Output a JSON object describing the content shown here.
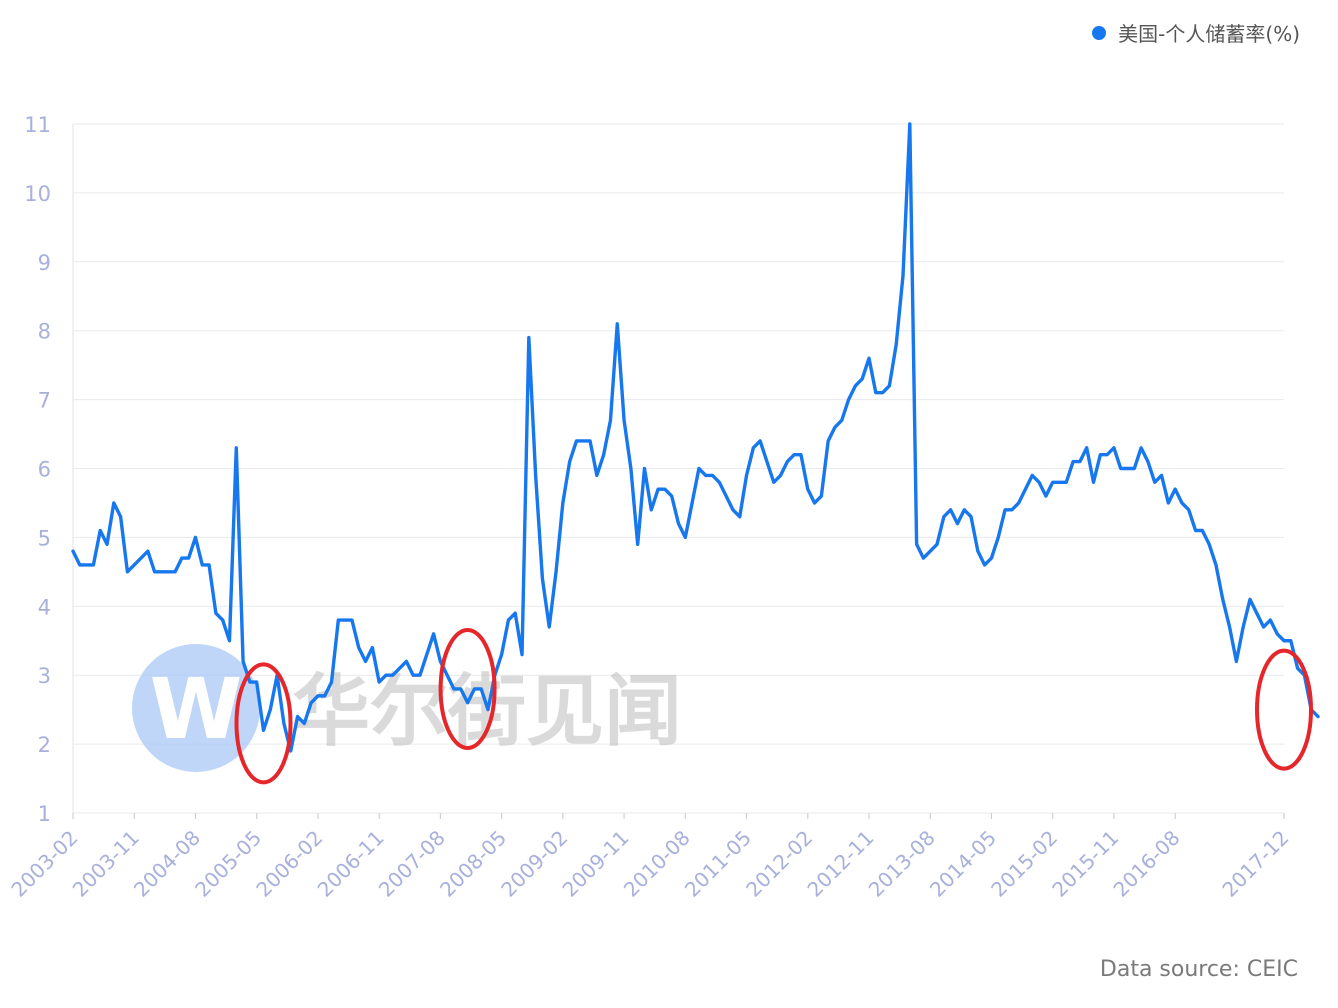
{
  "chart_data": {
    "type": "line",
    "title": "",
    "xlabel": "",
    "ylabel": "",
    "ylim": [
      1,
      11
    ],
    "yticks": [
      1,
      2,
      3,
      4,
      5,
      6,
      7,
      8,
      9,
      10,
      11
    ],
    "grid": true,
    "legend_position": "top-right",
    "x_tick_labels": [
      "2003-02",
      "2003-11",
      "2004-08",
      "2005-05",
      "2006-02",
      "2006-11",
      "2007-08",
      "2008-05",
      "2009-02",
      "2009-11",
      "2010-08",
      "2011-05",
      "2012-02",
      "2012-11",
      "2013-08",
      "2014-05",
      "2015-02",
      "2015-11",
      "2016-08",
      "2017-12"
    ],
    "series": [
      {
        "name": "美国-个人储蓄率(%)",
        "color": "#1677ee",
        "start": "2003-02",
        "end": "2017-12",
        "values": [
          4.8,
          4.6,
          4.6,
          4.6,
          5.1,
          4.9,
          5.5,
          5.3,
          4.5,
          4.6,
          4.7,
          4.8,
          4.5,
          4.5,
          4.5,
          4.5,
          4.7,
          4.7,
          5.0,
          4.6,
          4.6,
          3.9,
          3.8,
          3.5,
          6.3,
          3.2,
          2.9,
          2.9,
          2.2,
          2.5,
          3.0,
          2.3,
          1.9,
          2.4,
          2.3,
          2.6,
          2.7,
          2.7,
          2.9,
          3.8,
          3.8,
          3.8,
          3.4,
          3.2,
          3.4,
          2.9,
          3.0,
          3.0,
          3.1,
          3.2,
          3.0,
          3.0,
          3.3,
          3.6,
          3.2,
          3.0,
          2.8,
          2.8,
          2.6,
          2.8,
          2.8,
          2.5,
          3.0,
          3.3,
          3.8,
          3.9,
          3.3,
          7.9,
          5.9,
          4.4,
          3.7,
          4.5,
          5.5,
          6.1,
          6.4,
          6.4,
          6.4,
          5.9,
          6.2,
          6.7,
          8.1,
          6.7,
          6.0,
          4.9,
          6.0,
          5.4,
          5.7,
          5.7,
          5.6,
          5.2,
          5.0,
          5.5,
          6.0,
          5.9,
          5.9,
          5.8,
          5.6,
          5.4,
          5.3,
          5.9,
          6.3,
          6.4,
          6.1,
          5.8,
          5.9,
          6.1,
          6.2,
          6.2,
          5.7,
          5.5,
          5.6,
          6.4,
          6.6,
          6.7,
          7.0,
          7.2,
          7.3,
          7.6,
          7.1,
          7.1,
          7.2,
          7.8,
          8.8,
          11.0,
          4.9,
          4.7,
          4.8,
          4.9,
          5.3,
          5.4,
          5.2,
          5.4,
          5.3,
          4.8,
          4.6,
          4.7,
          5.0,
          5.4,
          5.4,
          5.5,
          5.7,
          5.9,
          5.8,
          5.6,
          5.8,
          5.8,
          5.8,
          6.1,
          6.1,
          6.3,
          5.8,
          6.2,
          6.2,
          6.3,
          6.0,
          6.0,
          6.0,
          6.3,
          6.1,
          5.8,
          5.9,
          5.5,
          5.7,
          5.5,
          5.4,
          5.1,
          5.1,
          4.9,
          4.6,
          4.1,
          3.7,
          3.2,
          3.7,
          4.1,
          3.9,
          3.7,
          3.8,
          3.6,
          3.5,
          3.5,
          3.1,
          3.0,
          2.5,
          2.4
        ]
      }
    ],
    "annotations": [
      {
        "type": "circle",
        "color": "#e5262a",
        "center_x": "2005-06",
        "center_y": 2.3
      },
      {
        "type": "circle",
        "color": "#e5262a",
        "center_x": "2007-12",
        "center_y": 2.8
      },
      {
        "type": "circle",
        "color": "#e5262a",
        "center_x": "2017-12",
        "center_y": 2.5
      }
    ]
  },
  "legend": {
    "label": "美国-个人储蓄率(%)"
  },
  "watermark": {
    "text": "华尔街见闻",
    "logo_letter": "W"
  },
  "source": {
    "text": "Data source: CEIC"
  }
}
